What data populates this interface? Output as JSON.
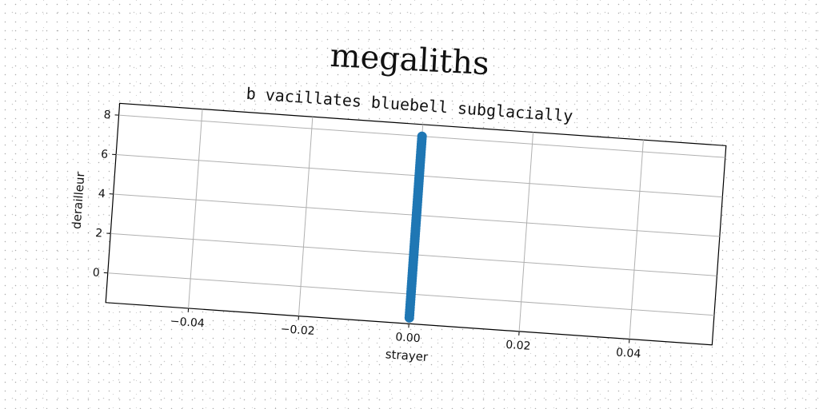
{
  "chart_data": {
    "type": "scatter",
    "title": "megaliths",
    "subtitle": "b vacillates bluebell subglacially",
    "xlabel": "strayer",
    "ylabel": "derailleur",
    "xlim": [
      -0.055,
      0.055
    ],
    "ylim": [
      -1.5,
      8.6
    ],
    "xticks": [
      -0.04,
      -0.02,
      0.0,
      0.02,
      0.04
    ],
    "xtick_labels": [
      "−0.04",
      "−0.02",
      "0.00",
      "0.02",
      "0.04"
    ],
    "yticks": [
      0,
      2,
      4,
      6,
      8
    ],
    "ytick_labels": [
      "0",
      "2",
      "4",
      "6",
      "8"
    ],
    "grid": true,
    "series": [
      {
        "color": "#1f77b4",
        "x_value": 0.0,
        "y_start": -1.2,
        "y_end": 8.0,
        "point_count": 70
      }
    ]
  }
}
